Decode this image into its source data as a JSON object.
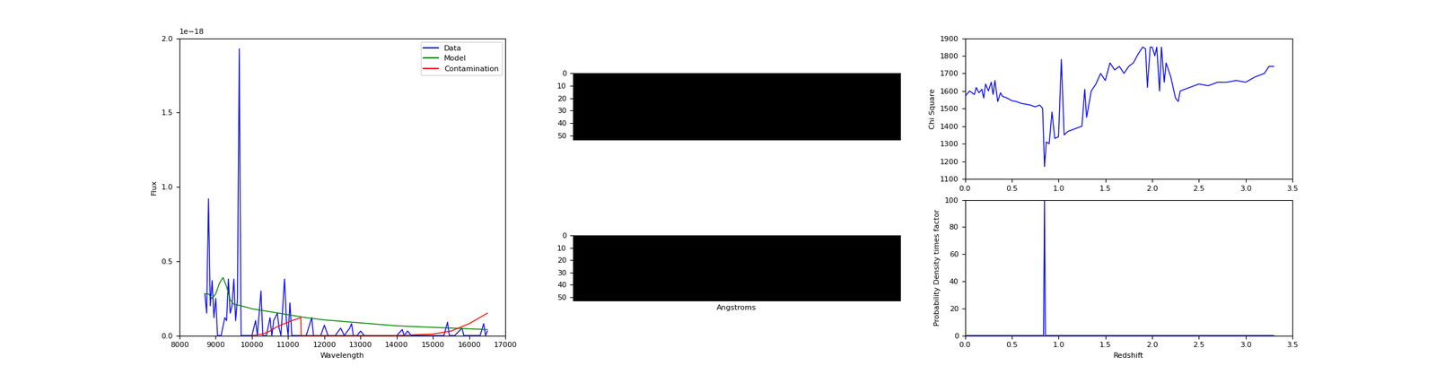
{
  "chart_data": [
    {
      "type": "line",
      "x_label": "Wavelength",
      "y_label": "Flux",
      "annotations": [
        "1e−18"
      ],
      "xlim": [
        8000,
        17000
      ],
      "xticks": [
        8000,
        9000,
        10000,
        11000,
        12000,
        13000,
        14000,
        15000,
        16000,
        17000
      ],
      "ylim": [
        0.0,
        2.0
      ],
      "yticks": [
        0.0,
        0.5,
        1.0,
        1.5,
        2.0
      ],
      "legend": "upper right",
      "series": [
        {
          "name": "Data",
          "color": "#0000ff",
          "x": [
            8700,
            8750,
            8800,
            8850,
            8900,
            8950,
            9000,
            9050,
            9150,
            9250,
            9300,
            9350,
            9400,
            9450,
            9500,
            9550,
            9600,
            9650,
            9700,
            9800,
            9900,
            10000,
            10100,
            10150,
            10250,
            10300,
            10400,
            10500,
            10550,
            10600,
            10700,
            10750,
            10800,
            10900,
            10950,
            11000,
            11050,
            11100,
            11300,
            11500,
            11650,
            11700,
            11900,
            12000,
            12100,
            12300,
            12450,
            12550,
            12700,
            12750,
            12800,
            12900,
            13000,
            13100,
            13500,
            14000,
            14150,
            14200,
            14300,
            14400,
            15000,
            15300,
            15400,
            15450,
            15600,
            15800,
            15850,
            16300,
            16400,
            16450,
            16500
          ],
          "values": [
            0.28,
            0.15,
            0.92,
            0.2,
            0.37,
            0.12,
            0.25,
            0.0,
            0.0,
            0.12,
            0.1,
            0.38,
            0.15,
            0.2,
            0.38,
            0.1,
            0.25,
            1.93,
            0.0,
            0.0,
            0.0,
            0.0,
            0.1,
            0.0,
            0.3,
            0.0,
            0.0,
            0.12,
            0.0,
            0.1,
            0.15,
            0.05,
            0.0,
            0.38,
            0.1,
            0.0,
            0.22,
            0.0,
            0.0,
            0.0,
            0.12,
            0.0,
            0.0,
            0.07,
            0.0,
            0.0,
            0.05,
            0.0,
            0.05,
            0.08,
            0.0,
            0.0,
            0.03,
            0.0,
            0.0,
            0.0,
            0.04,
            0.0,
            0.03,
            0.0,
            0.0,
            0.0,
            0.09,
            0.0,
            0.0,
            0.05,
            0.0,
            0.0,
            0.08,
            0.0,
            0.03
          ]
        },
        {
          "name": "Model",
          "color": "#008000",
          "x": [
            8700,
            8800,
            8900,
            9000,
            9100,
            9200,
            9300,
            9400,
            9500,
            9700,
            10000,
            10500,
            11000,
            11500,
            12000,
            12500,
            13000,
            13500,
            14000,
            14500,
            15000,
            15500,
            16000,
            16500
          ],
          "values": [
            0.28,
            0.28,
            0.25,
            0.28,
            0.35,
            0.39,
            0.33,
            0.24,
            0.21,
            0.2,
            0.18,
            0.16,
            0.14,
            0.12,
            0.105,
            0.095,
            0.085,
            0.075,
            0.065,
            0.06,
            0.055,
            0.05,
            0.045,
            0.04
          ]
        },
        {
          "name": "Contamination",
          "color": "#ff0000",
          "x": [
            10000,
            10300,
            10500,
            10700,
            10900,
            11100,
            11350,
            11360,
            12000,
            13000,
            14000,
            15000,
            15500,
            16000,
            16500
          ],
          "values": [
            0.0,
            0.01,
            0.03,
            0.06,
            0.08,
            0.1,
            0.12,
            0.0,
            0.0,
            0.0,
            0.0,
            0.01,
            0.03,
            0.08,
            0.15
          ]
        }
      ]
    },
    {
      "type": "image",
      "cells": [
        [
          0
        ]
      ],
      "color": "#000000",
      "xlim": [
        0,
        258
      ],
      "ylim": [
        53,
        0
      ],
      "yticks": [
        0,
        10,
        20,
        30,
        40,
        50
      ],
      "tick_labels": "y"
    },
    {
      "type": "image",
      "x_label": "Angstroms",
      "cells": [
        [
          0
        ]
      ],
      "color": "#000000",
      "xlim": [
        0,
        258
      ],
      "ylim": [
        53,
        0
      ],
      "yticks": [
        0,
        10,
        20,
        30,
        40,
        50
      ],
      "tick_labels": "y"
    },
    {
      "type": "line",
      "y_label": "Chi Square",
      "xlim": [
        0.0,
        3.5
      ],
      "xticks": [
        0.0,
        0.5,
        1.0,
        1.5,
        2.0,
        2.5,
        3.0,
        3.5
      ],
      "ylim": [
        1100,
        1900
      ],
      "yticks": [
        1100,
        1200,
        1300,
        1400,
        1500,
        1600,
        1700,
        1800,
        1900
      ],
      "series": [
        {
          "color": "#0000ff",
          "x": [
            0.0,
            0.05,
            0.1,
            0.12,
            0.15,
            0.18,
            0.2,
            0.22,
            0.25,
            0.28,
            0.3,
            0.32,
            0.35,
            0.38,
            0.4,
            0.45,
            0.5,
            0.55,
            0.6,
            0.65,
            0.7,
            0.75,
            0.8,
            0.83,
            0.85,
            0.87,
            0.9,
            0.93,
            0.96,
            1.0,
            1.03,
            1.06,
            1.1,
            1.15,
            1.2,
            1.25,
            1.28,
            1.3,
            1.35,
            1.4,
            1.45,
            1.5,
            1.55,
            1.6,
            1.65,
            1.7,
            1.75,
            1.8,
            1.85,
            1.9,
            1.93,
            1.95,
            1.98,
            2.0,
            2.03,
            2.05,
            2.08,
            2.1,
            2.13,
            2.15,
            2.2,
            2.25,
            2.28,
            2.3,
            2.4,
            2.5,
            2.6,
            2.7,
            2.8,
            2.9,
            3.0,
            3.1,
            3.2,
            3.25,
            3.3
          ],
          "values": [
            1570,
            1600,
            1580,
            1620,
            1590,
            1610,
            1560,
            1640,
            1600,
            1650,
            1580,
            1660,
            1540,
            1590,
            1570,
            1560,
            1545,
            1540,
            1530,
            1525,
            1520,
            1510,
            1520,
            1500,
            1170,
            1310,
            1300,
            1480,
            1330,
            1340,
            1780,
            1350,
            1370,
            1380,
            1390,
            1400,
            1610,
            1450,
            1600,
            1640,
            1700,
            1660,
            1760,
            1720,
            1740,
            1700,
            1740,
            1760,
            1810,
            1850,
            1840,
            1620,
            1850,
            1850,
            1800,
            1850,
            1600,
            1850,
            1650,
            1760,
            1680,
            1560,
            1540,
            1600,
            1620,
            1640,
            1630,
            1650,
            1650,
            1660,
            1650,
            1680,
            1700,
            1740,
            1740
          ]
        }
      ]
    },
    {
      "type": "line",
      "x_label": "Redshift",
      "y_label": "Probability Density times factor",
      "xlim": [
        0.0,
        3.5
      ],
      "xticks": [
        0.0,
        0.5,
        1.0,
        1.5,
        2.0,
        2.5,
        3.0,
        3.5
      ],
      "ylim": [
        0,
        100
      ],
      "yticks": [
        0,
        20,
        40,
        60,
        80,
        100
      ],
      "series": [
        {
          "color": "#0000ff",
          "x": [
            0.0,
            0.84,
            0.85,
            0.86,
            3.3
          ],
          "values": [
            0,
            0,
            100,
            0,
            0
          ]
        }
      ]
    }
  ]
}
